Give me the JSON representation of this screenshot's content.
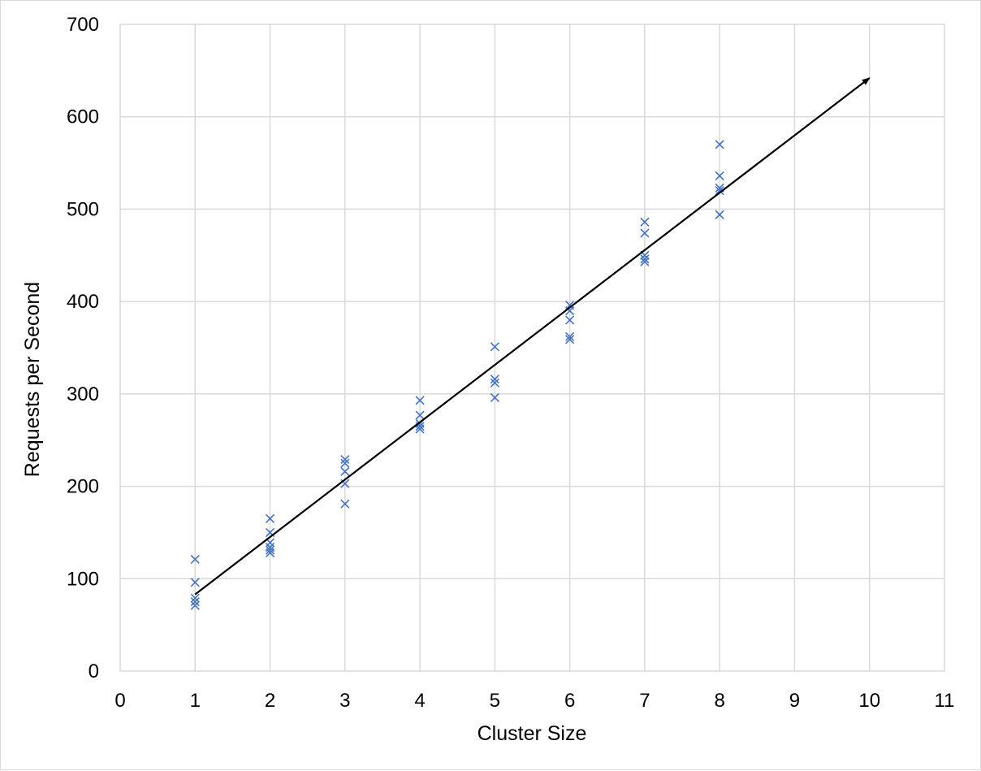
{
  "chart_data": {
    "type": "scatter",
    "title": "",
    "xlabel": "Cluster Size",
    "ylabel": "Requests per Second",
    "xlim": [
      0,
      11
    ],
    "ylim": [
      0,
      700
    ],
    "xticks": [
      0,
      1,
      2,
      3,
      4,
      5,
      6,
      7,
      8,
      9,
      10,
      11
    ],
    "yticks": [
      0,
      100,
      200,
      300,
      400,
      500,
      600,
      700
    ],
    "grid": true,
    "legend": "none",
    "marker": "x",
    "marker_color": "#4472c4",
    "series": [
      {
        "points": [
          [
            1,
            121
          ],
          [
            1,
            96
          ],
          [
            1,
            79
          ],
          [
            1,
            75
          ],
          [
            1,
            71
          ],
          [
            2,
            165
          ],
          [
            2,
            150
          ],
          [
            2,
            139
          ],
          [
            2,
            134
          ],
          [
            2,
            131
          ],
          [
            2,
            128
          ],
          [
            3,
            229
          ],
          [
            3,
            225
          ],
          [
            3,
            216
          ],
          [
            3,
            203
          ],
          [
            3,
            181
          ],
          [
            4,
            293
          ],
          [
            4,
            277
          ],
          [
            4,
            268
          ],
          [
            4,
            265
          ],
          [
            4,
            262
          ],
          [
            5,
            351
          ],
          [
            5,
            316
          ],
          [
            5,
            312
          ],
          [
            5,
            296
          ],
          [
            6,
            396
          ],
          [
            6,
            390
          ],
          [
            6,
            380
          ],
          [
            6,
            362
          ],
          [
            6,
            359
          ],
          [
            7,
            486
          ],
          [
            7,
            474
          ],
          [
            7,
            450
          ],
          [
            7,
            446
          ],
          [
            7,
            443
          ],
          [
            8,
            570
          ],
          [
            8,
            536
          ],
          [
            8,
            523
          ],
          [
            8,
            520
          ],
          [
            8,
            494
          ]
        ]
      }
    ],
    "trendline": {
      "start": [
        1,
        83
      ],
      "end": [
        10,
        642
      ],
      "color": "#000000",
      "arrowhead": true
    }
  }
}
